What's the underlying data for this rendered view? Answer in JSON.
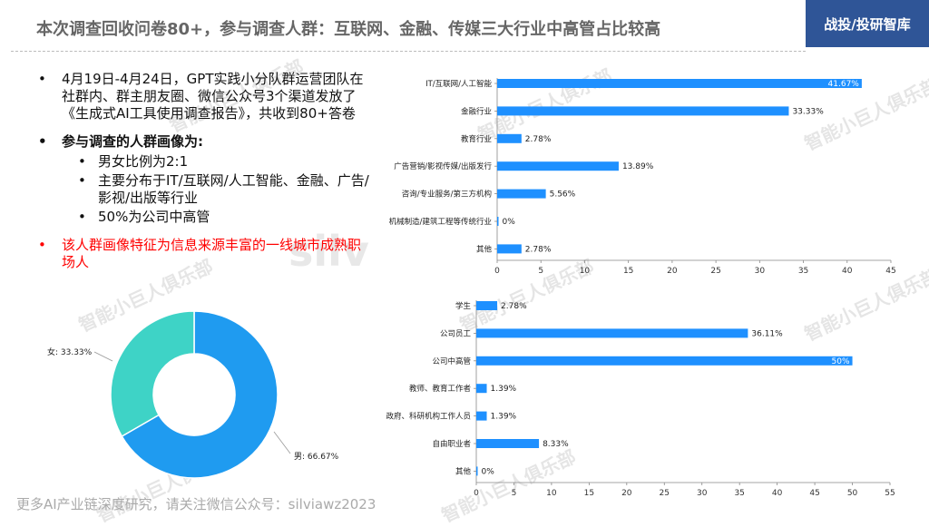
{
  "header": {
    "title": "本次调查回收问卷80+，参与调查人群：互联网、金融、传媒三大行业中高管占比较高",
    "brand": "战投/投研智库"
  },
  "bullets": [
    {
      "text": "4月19日-4月24日，GPT实践小分队群运营团队在社群内、群主朋友圈、微信公众号3个渠道发放了《生成式AI工具使用调查报告》，共收到80+答卷"
    },
    {
      "text": "参与调查的人群画像为:",
      "sub": [
        "男女比例为2:1",
        "主要分布于IT/互联网/人工智能、金融、广告/影视/出版等行业",
        "50%为公司中高管"
      ]
    },
    {
      "text": "该人群画像特征为信息来源丰富的一线城市成熟职场人"
    }
  ],
  "watermarks": {
    "text": "智能小巨人俱乐部",
    "silv": "silv"
  },
  "footer": "更多AI产业链深度研究，请关注微信公众号：silviawz2023",
  "colors": {
    "bar": "#1e90ff",
    "pie_male": "#1f9bf0",
    "pie_female": "#3ed3c6",
    "brand_bg": "#2f5597",
    "red": "#ff0000"
  },
  "chart_data": [
    {
      "type": "pie",
      "donut": true,
      "categories": [
        "男",
        "女"
      ],
      "values": [
        66.67,
        33.33
      ],
      "labels": [
        "男: 66.67%",
        "女: 33.33%"
      ]
    },
    {
      "type": "bar",
      "orientation": "horizontal",
      "categories": [
        "IT/互联网/人工智能",
        "金融行业",
        "教育行业",
        "广告营销/影视传媒/出版发行",
        "咨询/专业服务/第三方机构",
        "机械制造/建筑工程等传统行业",
        "其他"
      ],
      "values": [
        41.67,
        33.33,
        2.78,
        13.89,
        5.56,
        0,
        2.78
      ],
      "labels": [
        "41.67%",
        "33.33%",
        "2.78%",
        "13.89%",
        "5.56%",
        "0%",
        "2.78%"
      ],
      "xlim": [
        0,
        45
      ],
      "xticks": [
        0,
        5,
        10,
        15,
        20,
        25,
        30,
        35,
        40,
        45
      ]
    },
    {
      "type": "bar",
      "orientation": "horizontal",
      "categories": [
        "学生",
        "公司员工",
        "公司中高管",
        "教师、教育工作者",
        "政府、科研机构工作人员",
        "自由职业者",
        "其他"
      ],
      "values": [
        2.78,
        36.11,
        50,
        1.39,
        1.39,
        8.33,
        0
      ],
      "labels": [
        "2.78%",
        "36.11%",
        "50%",
        "1.39%",
        "1.39%",
        "8.33%",
        "0%"
      ],
      "xlim": [
        0,
        55
      ],
      "xticks": [
        0,
        5,
        10,
        15,
        20,
        25,
        30,
        35,
        40,
        45,
        50,
        55
      ]
    }
  ]
}
